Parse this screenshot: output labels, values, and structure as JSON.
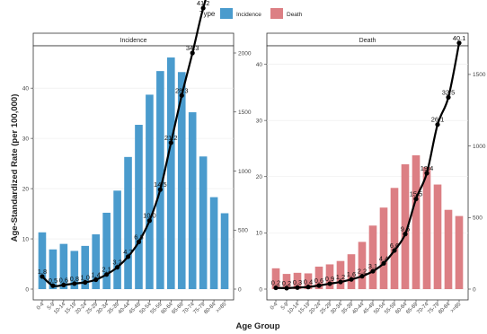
{
  "legend": {
    "title": "Type",
    "placement": "top",
    "items": [
      {
        "label": "Incidence",
        "color": "#4a9bcd"
      },
      {
        "label": "Death",
        "color": "#dc7f84"
      }
    ]
  },
  "y_axis_title": "Age-Standardized Rate (per 100,000)",
  "x_axis_title": "Age Group",
  "line_color": "#000000",
  "chart_data": [
    {
      "type": "bar",
      "panel": "Incidence",
      "title": "Incidence",
      "bar_color": "#4a9bcd",
      "categories": [
        "0-4",
        "5-9",
        "10-14",
        "15-19",
        "20-24",
        "25-29",
        "30-34",
        "35-39",
        "40-44",
        "45-49",
        "50-54",
        "55-59",
        "60-64",
        "65-69",
        "70-74",
        "75-79",
        "80-84",
        ">=85"
      ],
      "bar_values": [
        11.3,
        7.9,
        9.0,
        7.6,
        8.6,
        10.9,
        15.2,
        19.6,
        26.3,
        32.7,
        38.7,
        43.4,
        46.1,
        43.2,
        35.2,
        26.4,
        18.3,
        15.1
      ],
      "ylim_left": [
        0,
        47
      ],
      "yticks_left": [
        0,
        10,
        20,
        30,
        40
      ],
      "line_values": [
        107,
        29,
        35,
        47,
        57,
        80,
        124,
        185,
        275,
        400,
        580,
        843,
        1240,
        1640,
        2000,
        2380,
        2663,
        2860
      ],
      "point_labels": [
        "1.8",
        "0.5",
        "0.6",
        "0.8",
        "1.0",
        "1.4",
        "2.1",
        "3.2",
        "4.7",
        "6.8",
        "10.0",
        "14.5",
        "21.2",
        "28.3",
        "34.3",
        "41.2",
        "37.3",
        "46.2"
      ],
      "ylim_right": [
        0,
        2000
      ],
      "yticks_right": [
        0,
        500,
        1000,
        1500,
        2000
      ]
    },
    {
      "type": "bar",
      "panel": "Death",
      "title": "Death",
      "bar_color": "#dc7f84",
      "categories": [
        "0-4",
        "5-9",
        "10-14",
        "15-19",
        "20-24",
        "25-29",
        "30-34",
        "35-39",
        "40-44",
        "45-49",
        "50-54",
        "55-59",
        "60-64",
        "65-69",
        "70-74",
        "75-79",
        "80-84",
        ">=85"
      ],
      "bar_values": [
        3.7,
        2.7,
        2.9,
        2.8,
        4.0,
        4.4,
        5.0,
        6.2,
        8.4,
        11.3,
        14.5,
        18.0,
        22.2,
        23.8,
        21.7,
        18.6,
        14.1,
        13.0
      ],
      "ylim_left": [
        0,
        42
      ],
      "yticks_left": [
        0,
        10,
        20,
        30,
        40
      ],
      "line_values": [
        9,
        7,
        11,
        15,
        25,
        38,
        50,
        68,
        90,
        125,
        180,
        270,
        385,
        630,
        810,
        1150,
        1340,
        1720
      ],
      "point_labels": [
        "0.2",
        "0.2",
        "0.3",
        "0.4",
        "0.6",
        "0.9",
        "1.2",
        "1.6",
        "2.2",
        "3.1",
        "4.4",
        "6.6",
        "9.5",
        "15.5",
        "19.4",
        "26.1",
        "32.5",
        "40.1"
      ],
      "ylim_right": [
        0,
        1650
      ],
      "yticks_right": [
        0,
        500,
        1000,
        1500
      ]
    }
  ]
}
